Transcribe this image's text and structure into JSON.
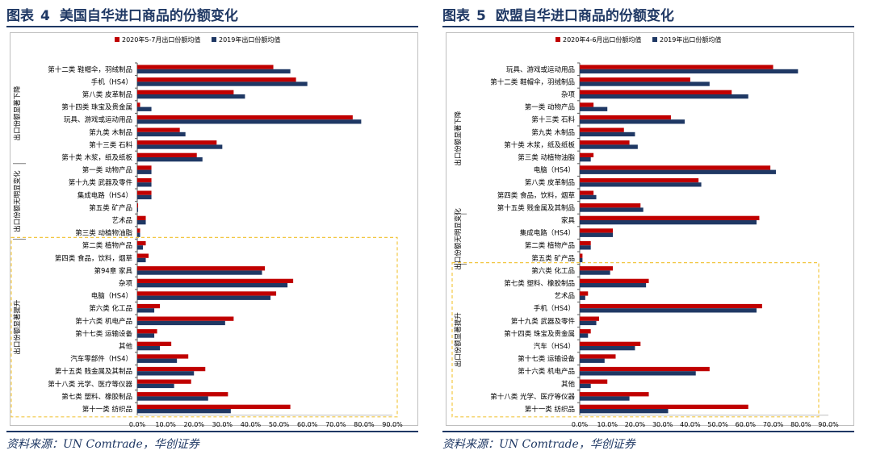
{
  "source_label": "资料来源：UN Comtrade，华创证券",
  "colors": {
    "series_2020": "#c00000",
    "series_2019": "#1f3864",
    "title": "#1f3864",
    "group_box": "#f2c744"
  },
  "figures": [
    {
      "title_prefix": "图表",
      "number": "4",
      "title": "美国自华进口商品的份额变化",
      "source": "资料来源：UN Comtrade，华创证券"
    },
    {
      "title_prefix": "图表",
      "number": "5",
      "title": "欧盟自华进口商品的份额变化",
      "source": "资料来源：UN Comtrade，华创证券"
    }
  ],
  "chart_data": [
    {
      "type": "bar",
      "orientation": "horizontal",
      "xlim": [
        0,
        0.9
      ],
      "xticks": [
        "0.0%",
        "10.0%",
        "20.0%",
        "30.0%",
        "40.0%",
        "50.0%",
        "60.0%",
        "70.0%",
        "80.0%",
        "90.0%"
      ],
      "legend_position": "top",
      "series": [
        {
          "name": "2020年5-7月出口份额均值",
          "color": "#c00000",
          "values": [
            0.48,
            0.56,
            0.34,
            0.01,
            0.76,
            0.15,
            0.28,
            0.21,
            0.05,
            0.05,
            0.05,
            0.003,
            0.03,
            0.01,
            0.03,
            0.04,
            0.45,
            0.55,
            0.49,
            0.08,
            0.34,
            0.07,
            0.12,
            0.18,
            0.24,
            0.19,
            0.32,
            0.54
          ]
        },
        {
          "name": "2019年出口份额均值",
          "color": "#1f3864",
          "values": [
            0.54,
            0.6,
            0.38,
            0.05,
            0.79,
            0.17,
            0.3,
            0.23,
            0.05,
            0.05,
            0.05,
            0.003,
            0.03,
            0.01,
            0.02,
            0.03,
            0.44,
            0.53,
            0.47,
            0.06,
            0.31,
            0.06,
            0.08,
            0.14,
            0.2,
            0.13,
            0.25,
            0.33
          ]
        }
      ],
      "categories": [
        "第十二类 鞋帽伞，羽绒制品",
        "手机（HS4）",
        "第八类 皮革制品",
        "第十四类 珠宝及贵金属",
        "玩具、游戏或运动用品",
        "第九类 木制品",
        "第十三类 石料",
        "第十类 木浆，纸及纸板",
        "第一类 动物产品",
        "第十九类 武器及零件",
        "集成电路（HS4）",
        "第五类 矿产品",
        "艺术品",
        "第三类 动植物油脂",
        "第二类 植物产品",
        "第四类 食品，饮料，烟草",
        "第94章 家具",
        "杂项",
        "电脑（HS4）",
        "第六类 化工品",
        "第十六类 机电产品",
        "第十七类 运输设备",
        "其他",
        "汽车零部件（HS4）",
        "第十五类 贱金属及其制品",
        "第十八类 光学、医疗等仪器",
        "第七类 塑料、橡胶制品",
        "第十一类 纺织品"
      ],
      "groups": [
        {
          "label": "出口份额显著下降",
          "start": 0,
          "end": 7
        },
        {
          "label": "出口份额无明显变化",
          "start": 8,
          "end": 13
        },
        {
          "label": "出口份额显著提升",
          "start": 14,
          "end": 27
        }
      ]
    },
    {
      "type": "bar",
      "orientation": "horizontal",
      "xlim": [
        0,
        0.9
      ],
      "xticks": [
        "0.0%",
        "10.0%",
        "20.0%",
        "30.0%",
        "40.0%",
        "50.0%",
        "60.0%",
        "70.0%",
        "80.0%",
        "90.0%"
      ],
      "legend_position": "top",
      "series": [
        {
          "name": "2020年4-6月出口份额均值",
          "color": "#c00000",
          "values": [
            0.7,
            0.4,
            0.55,
            0.05,
            0.33,
            0.16,
            0.18,
            0.05,
            0.69,
            0.43,
            0.05,
            0.22,
            0.65,
            0.12,
            0.04,
            0.01,
            0.12,
            0.25,
            0.03,
            0.66,
            0.07,
            0.04,
            0.22,
            0.13,
            0.47,
            0.1,
            0.25,
            0.61
          ]
        },
        {
          "name": "2019年出口份额均值",
          "color": "#1f3864",
          "values": [
            0.79,
            0.47,
            0.61,
            0.1,
            0.38,
            0.2,
            0.21,
            0.04,
            0.71,
            0.44,
            0.06,
            0.23,
            0.64,
            0.12,
            0.04,
            0.01,
            0.11,
            0.24,
            0.02,
            0.64,
            0.06,
            0.03,
            0.2,
            0.09,
            0.42,
            0.04,
            0.18,
            0.32
          ]
        }
      ],
      "categories": [
        "玩具、游戏或运动用品",
        "第十二类 鞋帽伞，羽绒制品",
        "杂项",
        "第一类 动物产品",
        "第十三类 石料",
        "第九类 木制品",
        "第十类 木浆，纸及纸板",
        "第三类 动植物油脂",
        "电脑（HS4）",
        "第八类 皮革制品",
        "第四类 食品，饮料，烟草",
        "第十五类 贱金属及其制品",
        "家具",
        "集成电路（HS4）",
        "第二类 植物产品",
        "第五类 矿产品",
        "第六类 化工品",
        "第七类 塑料、橡胶制品",
        "艺术品",
        "手机（HS4）",
        "第十九类 武器及零件",
        "第十四类 珠宝及贵金属",
        "汽车（HS4）",
        "第十七类 运输设备",
        "第十六类 机电产品",
        "其他",
        "第十八类 光学、医疗等仪器",
        "第十一类 纺织品"
      ],
      "groups": [
        {
          "label": "出口份额显著下降",
          "start": 0,
          "end": 11
        },
        {
          "label": "出口份额无明显变化",
          "start": 12,
          "end": 15
        },
        {
          "label": "出口份额显著提升",
          "start": 16,
          "end": 27
        }
      ]
    }
  ]
}
